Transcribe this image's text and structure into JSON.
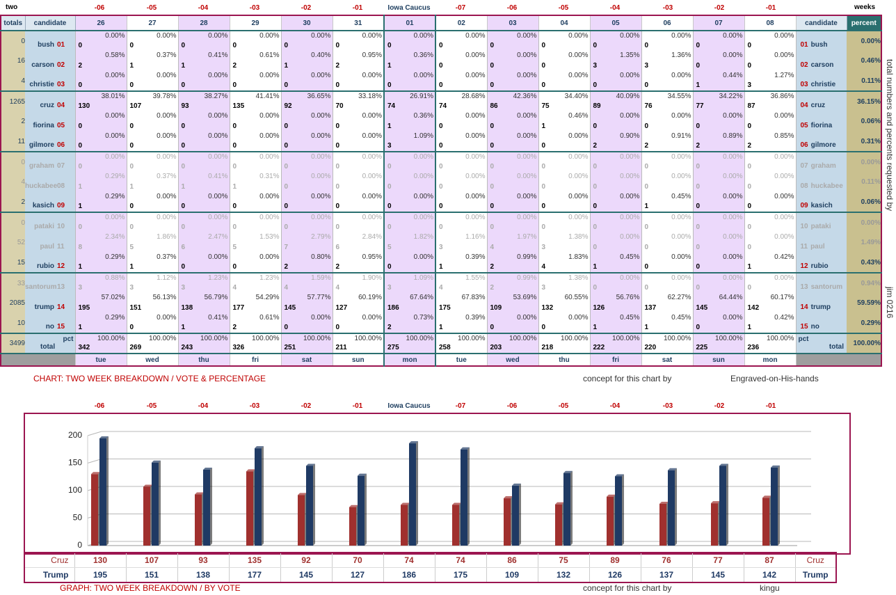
{
  "top": {
    "left_label": "two",
    "right_label": "weeks"
  },
  "day_offsets": [
    "-06",
    "-05",
    "-04",
    "-03",
    "-02",
    "-01",
    "Iowa Caucus",
    "-07",
    "-06",
    "-05",
    "-04",
    "-03",
    "-02",
    "-01"
  ],
  "headers": {
    "totals": "totals",
    "candidate": "candidate",
    "percent": "percent",
    "candidate_right": "candidate"
  },
  "dates": [
    "26",
    "27",
    "28",
    "29",
    "30",
    "31",
    "01",
    "02",
    "03",
    "04",
    "05",
    "06",
    "07",
    "08"
  ],
  "day_names": [
    "tue",
    "wed",
    "thu",
    "fri",
    "sat",
    "sun",
    "mon",
    "tue",
    "wed",
    "thu",
    "fri",
    "sat",
    "sun",
    "mon"
  ],
  "side_text": "total numbers and percents requested by",
  "side_text2": "jim 0216",
  "candidates": [
    {
      "name": "bush",
      "num": "01",
      "total": "0",
      "percent": "0.00%",
      "votes": [
        "0",
        "0",
        "0",
        "0",
        "0",
        "0",
        "0",
        "0",
        "0",
        "0",
        "0",
        "0",
        "0",
        "0"
      ],
      "pcts": [
        "0.00%",
        "0.00%",
        "0.00%",
        "0.00%",
        "0.00%",
        "0.00%",
        "0.00%",
        "0.00%",
        "0.00%",
        "0.00%",
        "0.00%",
        "0.00%",
        "0.00%",
        "0.00%"
      ]
    },
    {
      "name": "carson",
      "num": "02",
      "total": "16",
      "percent": "0.46%",
      "votes": [
        "2",
        "1",
        "1",
        "2",
        "1",
        "2",
        "1",
        "0",
        "0",
        "0",
        "3",
        "3",
        "0",
        "0"
      ],
      "pcts": [
        "0.58%",
        "0.37%",
        "0.41%",
        "0.61%",
        "0.40%",
        "0.95%",
        "0.36%",
        "0.00%",
        "0.00%",
        "0.00%",
        "1.35%",
        "1.36%",
        "0.00%",
        "0.00%"
      ]
    },
    {
      "name": "christie",
      "num": "03",
      "total": "4",
      "percent": "0.11%",
      "votes": [
        "0",
        "0",
        "0",
        "0",
        "0",
        "0",
        "0",
        "0",
        "0",
        "0",
        "0",
        "0",
        "1",
        "3"
      ],
      "pcts": [
        "0.00%",
        "0.00%",
        "0.00%",
        "0.00%",
        "0.00%",
        "0.00%",
        "0.00%",
        "0.00%",
        "0.00%",
        "0.00%",
        "0.00%",
        "0.00%",
        "0.44%",
        "1.27%"
      ]
    },
    {
      "name": "cruz",
      "num": "04",
      "total": "1265",
      "percent": "36.15%",
      "votes": [
        "130",
        "107",
        "93",
        "135",
        "92",
        "70",
        "74",
        "74",
        "86",
        "75",
        "89",
        "76",
        "77",
        "87"
      ],
      "pcts": [
        "38.01%",
        "39.78%",
        "38.27%",
        "41.41%",
        "36.65%",
        "33.18%",
        "26.91%",
        "28.68%",
        "42.36%",
        "34.40%",
        "40.09%",
        "34.55%",
        "34.22%",
        "36.86%"
      ]
    },
    {
      "name": "fiorina",
      "num": "05",
      "total": "2",
      "percent": "0.06%",
      "votes": [
        "0",
        "0",
        "0",
        "0",
        "0",
        "0",
        "1",
        "0",
        "0",
        "1",
        "0",
        "0",
        "0",
        "0"
      ],
      "pcts": [
        "0.00%",
        "0.00%",
        "0.00%",
        "0.00%",
        "0.00%",
        "0.00%",
        "0.36%",
        "0.00%",
        "0.00%",
        "0.46%",
        "0.00%",
        "0.00%",
        "0.00%",
        "0.00%"
      ]
    },
    {
      "name": "gilmore",
      "num": "06",
      "total": "11",
      "percent": "0.31%",
      "votes": [
        "0",
        "0",
        "0",
        "0",
        "0",
        "0",
        "3",
        "0",
        "0",
        "0",
        "2",
        "2",
        "2",
        "2"
      ],
      "pcts": [
        "0.00%",
        "0.00%",
        "0.00%",
        "0.00%",
        "0.00%",
        "0.00%",
        "1.09%",
        "0.00%",
        "0.00%",
        "0.00%",
        "0.90%",
        "0.91%",
        "0.89%",
        "0.85%"
      ]
    },
    {
      "name": "graham",
      "num": "07",
      "total": "0",
      "percent": "0.00%",
      "dim": true,
      "votes": [
        "0",
        "0",
        "0",
        "0",
        "0",
        "0",
        "0",
        "0",
        "0",
        "0",
        "0",
        "0",
        "0",
        "0"
      ],
      "pcts": [
        "0.00%",
        "0.00%",
        "0.00%",
        "0.00%",
        "0.00%",
        "0.00%",
        "0.00%",
        "0.00%",
        "0.00%",
        "0.00%",
        "0.00%",
        "0.00%",
        "0.00%",
        "0.00%"
      ]
    },
    {
      "name": "huckabee",
      "num": "08",
      "total": "4",
      "percent": "0.11%",
      "dim": true,
      "votes": [
        "1",
        "1",
        "1",
        "1",
        "0",
        "0",
        "0",
        "0",
        "0",
        "0",
        "0",
        "0",
        "0",
        "0"
      ],
      "pcts": [
        "0.29%",
        "0.37%",
        "0.41%",
        "0.31%",
        "0.00%",
        "0.00%",
        "0.00%",
        "0.00%",
        "0.00%",
        "0.00%",
        "0.00%",
        "0.00%",
        "0.00%",
        "0.00%"
      ]
    },
    {
      "name": "kasich",
      "num": "09",
      "total": "2",
      "percent": "0.06%",
      "votes": [
        "1",
        "0",
        "0",
        "0",
        "0",
        "0",
        "0",
        "0",
        "0",
        "0",
        "0",
        "1",
        "0",
        "0"
      ],
      "pcts": [
        "0.29%",
        "0.00%",
        "0.00%",
        "0.00%",
        "0.00%",
        "0.00%",
        "0.00%",
        "0.00%",
        "0.00%",
        "0.00%",
        "0.00%",
        "0.45%",
        "0.00%",
        "0.00%"
      ]
    },
    {
      "name": "pataki",
      "num": "10",
      "total": "0",
      "percent": "0.00%",
      "dim": true,
      "votes": [
        "0",
        "0",
        "0",
        "0",
        "0",
        "0",
        "0",
        "0",
        "0",
        "0",
        "0",
        "0",
        "0",
        "0"
      ],
      "pcts": [
        "0.00%",
        "0.00%",
        "0.00%",
        "0.00%",
        "0.00%",
        "0.00%",
        "0.00%",
        "0.00%",
        "0.00%",
        "0.00%",
        "0.00%",
        "0.00%",
        "0.00%",
        "0.00%"
      ]
    },
    {
      "name": "paul",
      "num": "11",
      "total": "52",
      "percent": "1.49%",
      "dim": true,
      "votes": [
        "8",
        "5",
        "6",
        "5",
        "7",
        "6",
        "5",
        "3",
        "4",
        "3",
        "0",
        "0",
        "0",
        "0"
      ],
      "pcts": [
        "2.34%",
        "1.86%",
        "2.47%",
        "1.53%",
        "2.79%",
        "2.84%",
        "1.82%",
        "1.16%",
        "1.97%",
        "1.38%",
        "0.00%",
        "0.00%",
        "0.00%",
        "0.00%"
      ]
    },
    {
      "name": "rubio",
      "num": "12",
      "total": "15",
      "percent": "0.43%",
      "votes": [
        "1",
        "1",
        "0",
        "0",
        "2",
        "2",
        "0",
        "1",
        "2",
        "4",
        "1",
        "0",
        "0",
        "1"
      ],
      "pcts": [
        "0.29%",
        "0.37%",
        "0.00%",
        "0.00%",
        "0.80%",
        "0.95%",
        "0.00%",
        "0.39%",
        "0.99%",
        "1.83%",
        "0.45%",
        "0.00%",
        "0.00%",
        "0.42%"
      ]
    },
    {
      "name": "santorum",
      "num": "13",
      "total": "33",
      "percent": "0.94%",
      "dim": true,
      "votes": [
        "3",
        "3",
        "3",
        "4",
        "4",
        "4",
        "3",
        "4",
        "2",
        "3",
        "0",
        "0",
        "0",
        "0"
      ],
      "pcts": [
        "0.88%",
        "1.12%",
        "1.23%",
        "1.23%",
        "1.59%",
        "1.90%",
        "1.09%",
        "1.55%",
        "0.99%",
        "1.38%",
        "0.00%",
        "0.00%",
        "0.00%",
        "0.00%"
      ]
    },
    {
      "name": "trump",
      "num": "14",
      "total": "2085",
      "percent": "59.59%",
      "votes": [
        "195",
        "151",
        "138",
        "177",
        "145",
        "127",
        "186",
        "175",
        "109",
        "132",
        "126",
        "137",
        "145",
        "142"
      ],
      "pcts": [
        "57.02%",
        "56.13%",
        "56.79%",
        "54.29%",
        "57.77%",
        "60.19%",
        "67.64%",
        "67.83%",
        "53.69%",
        "60.55%",
        "56.76%",
        "62.27%",
        "64.44%",
        "60.17%"
      ]
    },
    {
      "name": "no",
      "num": "15",
      "total": "10",
      "percent": "0.29%",
      "votes": [
        "1",
        "0",
        "1",
        "2",
        "0",
        "0",
        "2",
        "1",
        "0",
        "0",
        "1",
        "1",
        "0",
        "1"
      ],
      "pcts": [
        "0.29%",
        "0.00%",
        "0.41%",
        "0.61%",
        "0.00%",
        "0.00%",
        "0.73%",
        "0.39%",
        "0.00%",
        "0.00%",
        "0.45%",
        "0.45%",
        "0.00%",
        "0.42%"
      ]
    }
  ],
  "totals_row": {
    "grand_total": "3499",
    "label": "total",
    "pct_label": "pct",
    "pct_value": "100.00%",
    "percent": "100.00%",
    "values": [
      "342",
      "269",
      "243",
      "326",
      "251",
      "211",
      "275",
      "258",
      "203",
      "218",
      "222",
      "220",
      "225",
      "236"
    ]
  },
  "footer1": {
    "title": "CHART: TWO WEEK BREAKDOWN / VOTE & PERCENTAGE",
    "concept": "concept for this chart by",
    "author": "Engraved-on-His-hands"
  },
  "footer2": {
    "title": "GRAPH: TWO WEEK BREAKDOWN / BY VOTE",
    "concept": "concept for this chart by",
    "author": "kingu"
  },
  "colors": {
    "cruz": "#a0302e",
    "trump": "#1f3a64",
    "border": "#9b1550",
    "teal": "#2a6f6f"
  },
  "chart_data": {
    "type": "bar",
    "categories": [
      "-06",
      "-05",
      "-04",
      "-03",
      "-02",
      "-01",
      "Iowa Caucus",
      "-07",
      "-06",
      "-05",
      "-04",
      "-03",
      "-02",
      "-01"
    ],
    "series": [
      {
        "name": "Cruz",
        "values": [
          130,
          107,
          93,
          135,
          92,
          70,
          74,
          74,
          86,
          75,
          89,
          76,
          77,
          87
        ]
      },
      {
        "name": "Trump",
        "values": [
          195,
          151,
          138,
          177,
          145,
          127,
          186,
          175,
          109,
          132,
          126,
          137,
          145,
          142
        ]
      }
    ],
    "yticks": [
      "0",
      "50",
      "100",
      "150",
      "200"
    ],
    "ylim": [
      0,
      200
    ]
  }
}
